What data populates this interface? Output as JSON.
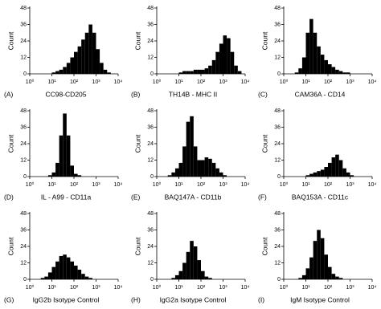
{
  "chart_data": [
    {
      "type": "histogram",
      "panel": "(A)",
      "title": "CC98-CD205",
      "ylabel": "Count",
      "xscale": "log",
      "color": "#000000",
      "bins": [
        1,
        1.47,
        2.15,
        3.16,
        4.64,
        6.81,
        10,
        14.7,
        21.5,
        31.6,
        46.4,
        68.1,
        100,
        147,
        215,
        316,
        464,
        681,
        1000,
        1468,
        2154,
        3162,
        4642,
        6813,
        10000
      ],
      "values": [
        0,
        0,
        0,
        0,
        0,
        0,
        1,
        2,
        3,
        5,
        8,
        12,
        16,
        20,
        25,
        30,
        36,
        30,
        18,
        8,
        3,
        1,
        0,
        0
      ],
      "xlim": [
        1,
        10000
      ],
      "ylim": [
        0,
        48
      ],
      "yticks": [
        0,
        12,
        24,
        36,
        48
      ],
      "xticks": [
        {
          "value": 1,
          "label": "10⁰"
        },
        {
          "value": 10,
          "label": "10¹"
        },
        {
          "value": 100,
          "label": "10²"
        },
        {
          "value": 1000,
          "label": "10³"
        },
        {
          "value": 10000,
          "label": "10⁴"
        }
      ]
    },
    {
      "type": "histogram",
      "panel": "(B)",
      "title": "TH14B - MHC II",
      "ylabel": "Count",
      "xscale": "log",
      "color": "#000000",
      "bins": [
        1,
        1.47,
        2.15,
        3.16,
        4.64,
        6.81,
        10,
        14.7,
        21.5,
        31.6,
        46.4,
        68.1,
        100,
        147,
        215,
        316,
        464,
        681,
        1000,
        1468,
        2154,
        3162,
        4642,
        6813,
        10000
      ],
      "values": [
        0,
        0,
        0,
        0,
        0,
        0,
        1,
        2,
        2,
        2,
        3,
        3,
        3,
        4,
        6,
        10,
        16,
        22,
        28,
        26,
        16,
        6,
        2,
        0
      ],
      "xlim": [
        1,
        10000
      ],
      "ylim": [
        0,
        48
      ],
      "yticks": [
        0,
        12,
        24,
        36,
        48
      ],
      "xticks": [
        {
          "value": 1,
          "label": "10⁰"
        },
        {
          "value": 10,
          "label": "10¹"
        },
        {
          "value": 100,
          "label": "10²"
        },
        {
          "value": 1000,
          "label": "10³"
        },
        {
          "value": 10000,
          "label": "10⁴"
        }
      ]
    },
    {
      "type": "histogram",
      "panel": "(C)",
      "title": "CAM36A - CD14",
      "ylabel": "Count",
      "xscale": "log",
      "color": "#000000",
      "bins": [
        1,
        1.47,
        2.15,
        3.16,
        4.64,
        6.81,
        10,
        14.7,
        21.5,
        31.6,
        46.4,
        68.1,
        100,
        147,
        215,
        316,
        464,
        681,
        1000,
        1468,
        2154,
        3162,
        4642,
        6813,
        10000
      ],
      "values": [
        0,
        0,
        0,
        1,
        4,
        12,
        30,
        40,
        30,
        20,
        14,
        10,
        7,
        5,
        3,
        2,
        1,
        1,
        0,
        0,
        0,
        0,
        0,
        0
      ],
      "xlim": [
        1,
        10000
      ],
      "ylim": [
        0,
        48
      ],
      "yticks": [
        0,
        12,
        24,
        36,
        48
      ],
      "xticks": [
        {
          "value": 1,
          "label": "10⁰"
        },
        {
          "value": 10,
          "label": "10¹"
        },
        {
          "value": 100,
          "label": "10²"
        },
        {
          "value": 1000,
          "label": "10³"
        },
        {
          "value": 10000,
          "label": "10⁴"
        }
      ]
    },
    {
      "type": "histogram",
      "panel": "(D)",
      "title": "IL - A99 - CD11a",
      "ylabel": "Count",
      "xscale": "log",
      "color": "#000000",
      "bins": [
        1,
        1.47,
        2.15,
        3.16,
        4.64,
        6.81,
        10,
        14.7,
        21.5,
        31.6,
        46.4,
        68.1,
        100,
        147,
        215,
        316,
        464,
        681,
        1000,
        1468,
        2154,
        3162,
        4642,
        6813,
        10000
      ],
      "values": [
        0,
        0,
        0,
        0,
        0,
        1,
        3,
        10,
        30,
        46,
        30,
        8,
        2,
        1,
        0,
        0,
        0,
        0,
        0,
        0,
        0,
        0,
        0,
        0
      ],
      "xlim": [
        1,
        10000
      ],
      "ylim": [
        0,
        48
      ],
      "yticks": [
        0,
        12,
        24,
        36,
        48
      ],
      "xticks": [
        {
          "value": 1,
          "label": "10⁰"
        },
        {
          "value": 10,
          "label": "10¹"
        },
        {
          "value": 100,
          "label": "10²"
        },
        {
          "value": 1000,
          "label": "10³"
        },
        {
          "value": 10000,
          "label": "10⁴"
        }
      ]
    },
    {
      "type": "histogram",
      "panel": "(E)",
      "title": "BAQ147A - CD11b",
      "ylabel": "Count",
      "xscale": "log",
      "color": "#000000",
      "bins": [
        1,
        1.47,
        2.15,
        3.16,
        4.64,
        6.81,
        10,
        14.7,
        21.5,
        31.6,
        46.4,
        68.1,
        100,
        147,
        215,
        316,
        464,
        681,
        1000,
        1468,
        2154,
        3162,
        4642,
        6813,
        10000
      ],
      "values": [
        0,
        0,
        0,
        1,
        3,
        6,
        10,
        22,
        40,
        44,
        22,
        12,
        12,
        14,
        13,
        10,
        6,
        3,
        1,
        0,
        0,
        0,
        0,
        0
      ],
      "xlim": [
        1,
        10000
      ],
      "ylim": [
        0,
        48
      ],
      "yticks": [
        0,
        12,
        24,
        36,
        48
      ],
      "xticks": [
        {
          "value": 1,
          "label": "10⁰"
        },
        {
          "value": 10,
          "label": "10¹"
        },
        {
          "value": 100,
          "label": "10²"
        },
        {
          "value": 1000,
          "label": "10³"
        },
        {
          "value": 10000,
          "label": "10⁴"
        }
      ]
    },
    {
      "type": "histogram",
      "panel": "(F)",
      "title": "BAQ153A - CD11c",
      "ylabel": "Count",
      "xscale": "log",
      "color": "#000000",
      "bins": [
        1,
        1.47,
        2.15,
        3.16,
        4.64,
        6.81,
        10,
        14.7,
        21.5,
        31.6,
        46.4,
        68.1,
        100,
        147,
        215,
        316,
        464,
        681,
        1000,
        1468,
        2154,
        3162,
        4642,
        6813,
        10000
      ],
      "values": [
        0,
        0,
        0,
        0,
        0,
        0,
        1,
        2,
        3,
        4,
        5,
        7,
        10,
        14,
        16,
        12,
        6,
        3,
        1,
        0,
        0,
        0,
        0,
        0
      ],
      "xlim": [
        1,
        10000
      ],
      "ylim": [
        0,
        48
      ],
      "yticks": [
        0,
        12,
        24,
        36,
        48
      ],
      "xticks": [
        {
          "value": 1,
          "label": "10⁰"
        },
        {
          "value": 10,
          "label": "10¹"
        },
        {
          "value": 100,
          "label": "10²"
        },
        {
          "value": 1000,
          "label": "10³"
        },
        {
          "value": 10000,
          "label": "10⁴"
        }
      ]
    },
    {
      "type": "histogram",
      "panel": "(G)",
      "title": "IgG2b Isotype Control",
      "ylabel": "Count",
      "xscale": "log",
      "color": "#000000",
      "bins": [
        1,
        1.47,
        2.15,
        3.16,
        4.64,
        6.81,
        10,
        14.7,
        21.5,
        31.6,
        46.4,
        68.1,
        100,
        147,
        215,
        316,
        464,
        681,
        1000,
        1468,
        2154,
        3162,
        4642,
        6813,
        10000
      ],
      "values": [
        0,
        0,
        0,
        1,
        2,
        5,
        9,
        13,
        17,
        18,
        16,
        13,
        10,
        7,
        4,
        2,
        1,
        0,
        0,
        0,
        0,
        0,
        0,
        0
      ],
      "xlim": [
        1,
        10000
      ],
      "ylim": [
        0,
        48
      ],
      "yticks": [
        0,
        12,
        24,
        36,
        48
      ],
      "xticks": [
        {
          "value": 1,
          "label": "10⁰"
        },
        {
          "value": 10,
          "label": "10¹"
        },
        {
          "value": 100,
          "label": "10²"
        },
        {
          "value": 1000,
          "label": "10³"
        },
        {
          "value": 10000,
          "label": "10⁴"
        }
      ]
    },
    {
      "type": "histogram",
      "panel": "(H)",
      "title": "IgG2a Isotype Control",
      "ylabel": "Count",
      "xscale": "log",
      "color": "#000000",
      "bins": [
        1,
        1.47,
        2.15,
        3.16,
        4.64,
        6.81,
        10,
        14.7,
        21.5,
        31.6,
        46.4,
        68.1,
        100,
        147,
        215,
        316,
        464,
        681,
        1000,
        1468,
        2154,
        3162,
        4642,
        6813,
        10000
      ],
      "values": [
        0,
        0,
        0,
        0,
        1,
        3,
        6,
        12,
        20,
        28,
        24,
        14,
        6,
        2,
        1,
        0,
        0,
        0,
        0,
        0,
        0,
        0,
        0,
        0
      ],
      "xlim": [
        1,
        10000
      ],
      "ylim": [
        0,
        48
      ],
      "yticks": [
        0,
        12,
        24,
        36,
        48
      ],
      "xticks": [
        {
          "value": 1,
          "label": "10⁰"
        },
        {
          "value": 10,
          "label": "10¹"
        },
        {
          "value": 100,
          "label": "10²"
        },
        {
          "value": 1000,
          "label": "10³"
        },
        {
          "value": 10000,
          "label": "10⁴"
        }
      ]
    },
    {
      "type": "histogram",
      "panel": "(I)",
      "title": "IgM Isotype Control",
      "ylabel": "Count",
      "xscale": "log",
      "color": "#000000",
      "bins": [
        1,
        1.47,
        2.15,
        3.16,
        4.64,
        6.81,
        10,
        14.7,
        21.5,
        31.6,
        46.4,
        68.1,
        100,
        147,
        215,
        316,
        464,
        681,
        1000,
        1468,
        2154,
        3162,
        4642,
        6813,
        10000
      ],
      "values": [
        0,
        0,
        0,
        0,
        1,
        3,
        8,
        16,
        28,
        36,
        30,
        18,
        9,
        4,
        2,
        1,
        0,
        0,
        0,
        0,
        0,
        0,
        0,
        0
      ],
      "xlim": [
        1,
        10000
      ],
      "ylim": [
        0,
        48
      ],
      "yticks": [
        0,
        12,
        24,
        36,
        48
      ],
      "xticks": [
        {
          "value": 1,
          "label": "10⁰"
        },
        {
          "value": 10,
          "label": "10¹"
        },
        {
          "value": 100,
          "label": "10²"
        },
        {
          "value": 1000,
          "label": "10³"
        },
        {
          "value": 10000,
          "label": "10⁴"
        }
      ]
    }
  ]
}
